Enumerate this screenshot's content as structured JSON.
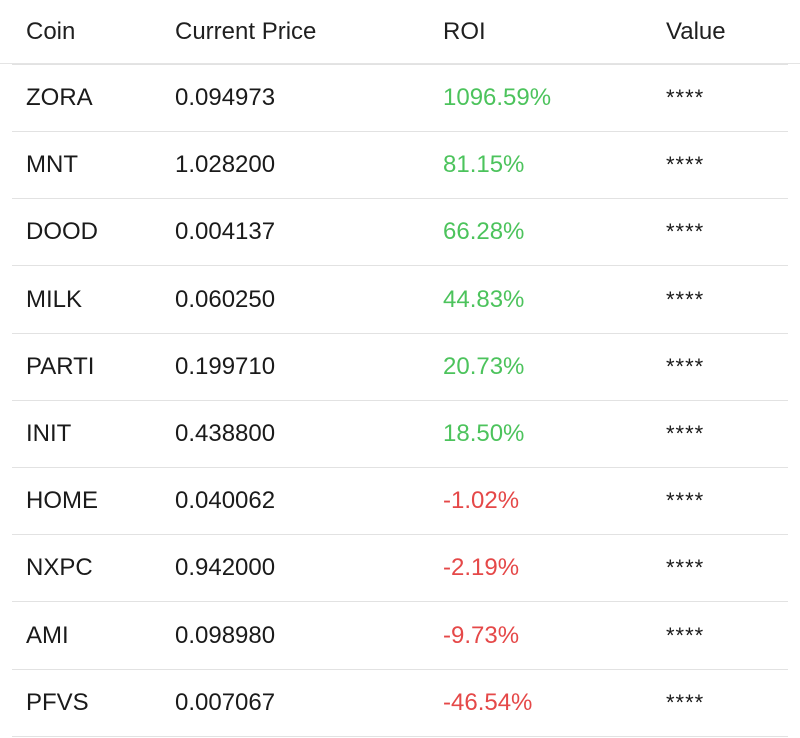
{
  "header": {
    "coin": "Coin",
    "current_price": "Current Price",
    "roi": "ROI",
    "value": "Value"
  },
  "rows": [
    {
      "coin": "ZORA",
      "price": "0.094973",
      "roi": "1096.59%",
      "roi_direction": "positive",
      "value": "****"
    },
    {
      "coin": "MNT",
      "price": "1.028200",
      "roi": "81.15%",
      "roi_direction": "positive",
      "value": "****"
    },
    {
      "coin": "DOOD",
      "price": "0.004137",
      "roi": "66.28%",
      "roi_direction": "positive",
      "value": "****"
    },
    {
      "coin": "MILK",
      "price": "0.060250",
      "roi": "44.83%",
      "roi_direction": "positive",
      "value": "****"
    },
    {
      "coin": "PARTI",
      "price": "0.199710",
      "roi": "20.73%",
      "roi_direction": "positive",
      "value": "****"
    },
    {
      "coin": "INIT",
      "price": "0.438800",
      "roi": "18.50%",
      "roi_direction": "positive",
      "value": "****"
    },
    {
      "coin": "HOME",
      "price": "0.040062",
      "roi": "-1.02%",
      "roi_direction": "negative",
      "value": "****"
    },
    {
      "coin": "NXPC",
      "price": "0.942000",
      "roi": "-2.19%",
      "roi_direction": "negative",
      "value": "****"
    },
    {
      "coin": "AMI",
      "price": "0.098980",
      "roi": "-9.73%",
      "roi_direction": "negative",
      "value": "****"
    },
    {
      "coin": "PFVS",
      "price": "0.007067",
      "roi": "-46.54%",
      "roi_direction": "negative",
      "value": "****"
    }
  ],
  "colors": {
    "positive": "#4cc35c",
    "negative": "#e54848",
    "text": "#1a1a1a",
    "divider": "#e2e2e2"
  }
}
